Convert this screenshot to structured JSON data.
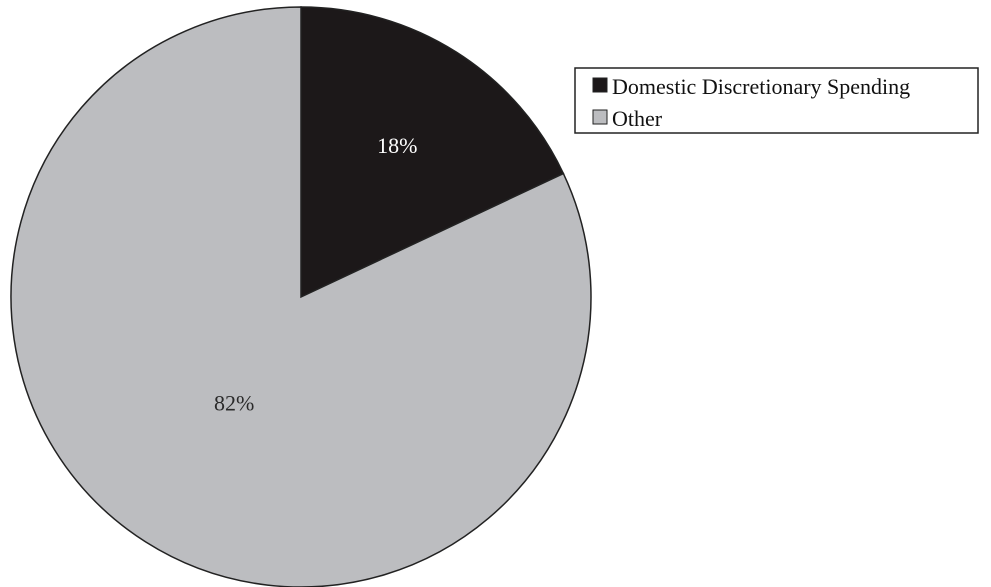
{
  "chart_data": {
    "type": "pie",
    "slices": [
      {
        "label": "Domestic Discretionary Spending",
        "value": 18,
        "display": "18%",
        "color": "#1c1819",
        "text_color": "#ffffff"
      },
      {
        "label": "Other",
        "value": 82,
        "display": "82%",
        "color": "#bcbdc0",
        "text_color": "#2a2a2a"
      }
    ],
    "legend_position": "top-right"
  }
}
